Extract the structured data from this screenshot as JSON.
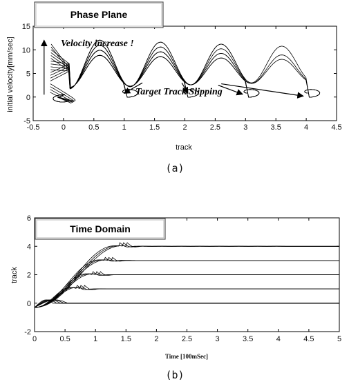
{
  "chart_data": [
    {
      "type": "line",
      "title_box": "Phase Plane",
      "xlabel": "track",
      "ylabel": "initial velocity[mm/sec]",
      "xlim": [
        -0.5,
        4.5
      ],
      "ylim": [
        -5,
        15
      ],
      "x_ticks": [
        "-0.5",
        "0",
        "0.5",
        "1",
        "1.5",
        "2",
        "2.5",
        "3",
        "3.5",
        "4",
        "4.5"
      ],
      "y_ticks": [
        "-5",
        "0",
        "5",
        "10",
        "15"
      ],
      "annotations": [
        "Velocity increase !",
        "Target Track Slipping"
      ],
      "caption": "(a)",
      "series": [
        {
          "target_track": 0,
          "peak_velocity": 3
        },
        {
          "target_track": 1,
          "peak_velocity": 11.5
        },
        {
          "target_track": 2,
          "peak_velocity": 10.5
        },
        {
          "target_track": 3,
          "peak_velocity": 9.5
        },
        {
          "target_track": 4,
          "peak_velocity": 8.5
        }
      ]
    },
    {
      "type": "line",
      "title_box": "Time Domain",
      "xlabel": "Time [100mSec]",
      "ylabel": "track",
      "xlim": [
        0,
        5
      ],
      "ylim": [
        -2,
        6
      ],
      "x_ticks": [
        "0",
        "0.5",
        "1",
        "1.5",
        "2",
        "2.5",
        "3",
        "3.5",
        "4",
        "4.5",
        "5"
      ],
      "y_ticks": [
        "-2",
        "0",
        "2",
        "4",
        "6"
      ],
      "caption": "(b)",
      "series": [
        {
          "final_track": 0,
          "settle_time": 0.3
        },
        {
          "final_track": 1,
          "settle_time": 0.7
        },
        {
          "final_track": 2,
          "settle_time": 0.95
        },
        {
          "final_track": 3,
          "settle_time": 1.15
        },
        {
          "final_track": 4,
          "settle_time": 1.4
        }
      ]
    }
  ]
}
